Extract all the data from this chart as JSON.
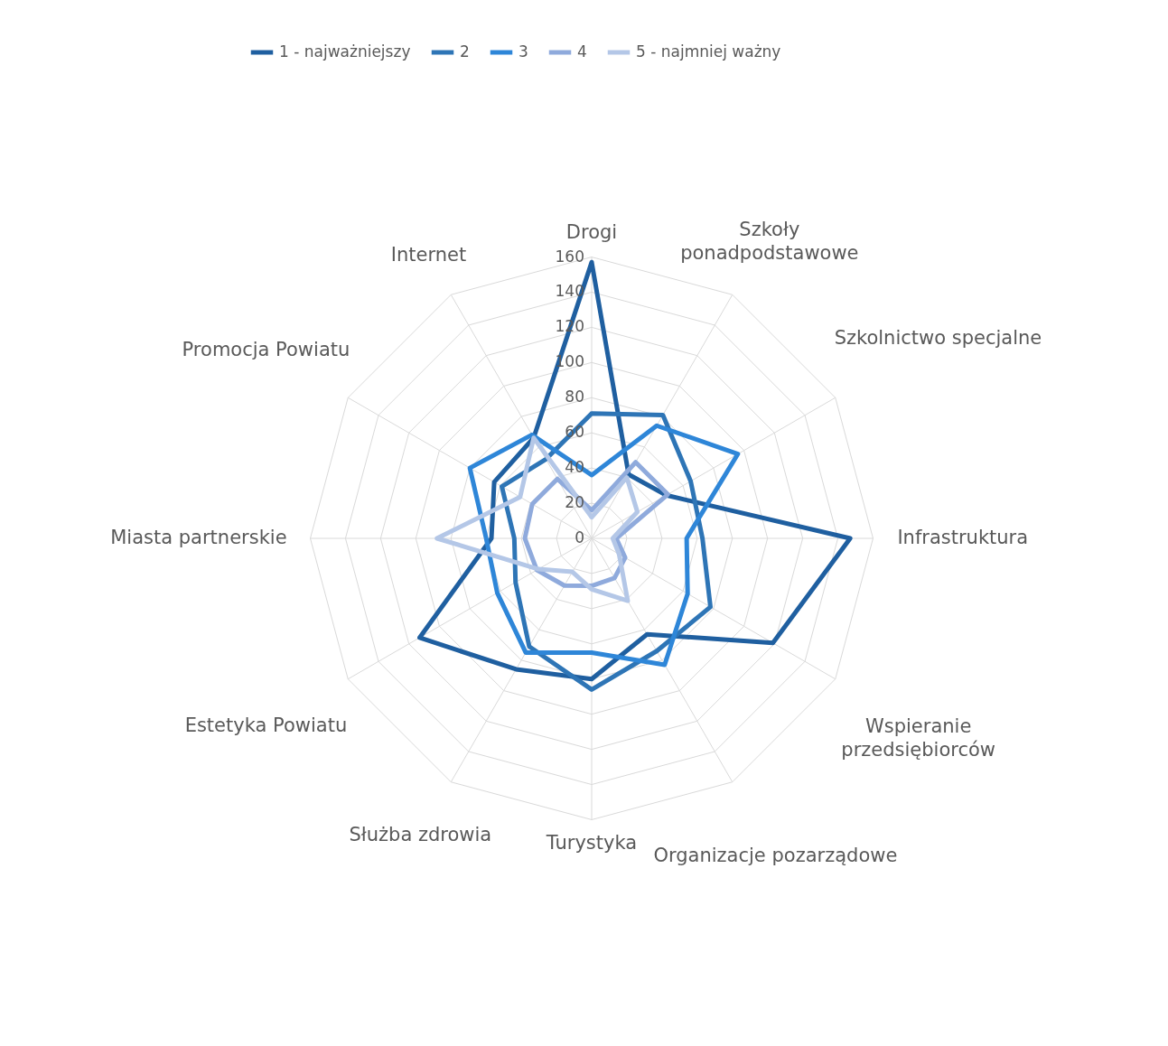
{
  "chart_data": {
    "type": "radar",
    "categories": [
      "Drogi",
      "Szkoły ponadpodstawowe",
      "Szkolnictwo specjalne",
      "Infrastruktura",
      "Wspieranie przedsiębiorców",
      "Organizacje pozarządowe",
      "Turystyka",
      "Służba zdrowia",
      "Estetyka Powiatu",
      "Miasta partnerskie",
      "Promocja Powiatu",
      "Internet"
    ],
    "series": [
      {
        "name": "1 - najważniejszy",
        "color": "#1f5fa0",
        "values": [
          157,
          42,
          49,
          147,
          119,
          63,
          80,
          86,
          113,
          57,
          64,
          66
        ]
      },
      {
        "name": "2",
        "color": "#2e75b6",
        "values": [
          71,
          81,
          65,
          63,
          78,
          74,
          86,
          71,
          50,
          44,
          59,
          52
        ]
      },
      {
        "name": "3",
        "color": "#2e86d8",
        "values": [
          36,
          74,
          96,
          54,
          63,
          83,
          65,
          75,
          62,
          60,
          80,
          68
        ]
      },
      {
        "name": "4",
        "color": "#8faadc",
        "values": [
          16,
          50,
          50,
          14,
          22,
          26,
          27,
          31,
          36,
          38,
          39,
          39
        ]
      },
      {
        "name": "5 - najmniej ważny",
        "color": "#b4c7e7",
        "values": [
          12,
          40,
          30,
          12,
          18,
          41,
          29,
          22,
          35,
          88,
          47,
          66
        ]
      }
    ],
    "ylim": [
      0,
      160
    ],
    "yticks": [
      0,
      20,
      40,
      60,
      80,
      100,
      120,
      140,
      160
    ],
    "grid": true,
    "legend": "top"
  }
}
